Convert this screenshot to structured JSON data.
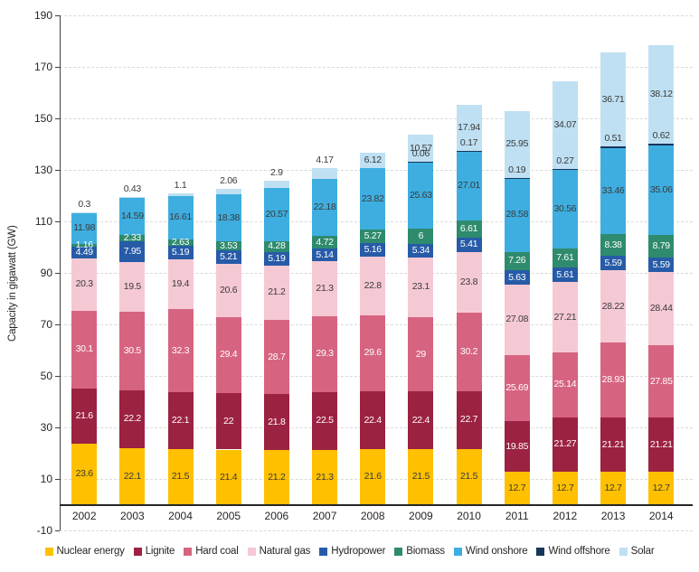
{
  "chart_data": {
    "type": "bar",
    "stacked": true,
    "title": "",
    "xlabel": "",
    "ylabel": "Capacity in gigawatt (GW)",
    "ylim": [
      -10,
      190
    ],
    "yticks": [
      190,
      170,
      150,
      130,
      110,
      90,
      70,
      50,
      30,
      10,
      -10
    ],
    "grid": "horizontal-dashed",
    "legend_position": "bottom",
    "axis_color": "#404040",
    "gridline_color": "#d9d9d9",
    "categories": [
      "2002",
      "2003",
      "2004",
      "2005",
      "2006",
      "2007",
      "2008",
      "2009",
      "2010",
      "2011",
      "2012",
      "2013",
      "2014"
    ],
    "series": [
      {
        "name": "Nuclear energy",
        "color": "#FFC000",
        "label_color": "#3a3a3a",
        "values": [
          23.6,
          22.1,
          21.5,
          21.4,
          21.2,
          21.3,
          21.6,
          21.5,
          21.5,
          12.7,
          12.7,
          12.7,
          12.7
        ]
      },
      {
        "name": "Lignite",
        "color": "#9C2242",
        "label_color": "#ffffff",
        "values": [
          21.6,
          22.2,
          22.1,
          22,
          21.8,
          22.5,
          22.4,
          22.4,
          22.7,
          19.85,
          21.27,
          21.21,
          21.21
        ]
      },
      {
        "name": "Hard coal",
        "color": "#D66480",
        "label_color": "#ffffff",
        "values": [
          30.1,
          30.5,
          32.3,
          29.4,
          28.7,
          29.3,
          29.6,
          29,
          30.2,
          25.69,
          25.14,
          28.93,
          27.85
        ]
      },
      {
        "name": "Natural gas",
        "color": "#F5C9D4",
        "label_color": "#3a3a3a",
        "values": [
          20.3,
          19.5,
          19.4,
          20.6,
          21.2,
          21.3,
          22.8,
          23.1,
          23.8,
          27.08,
          27.21,
          28.22,
          28.44
        ]
      },
      {
        "name": "Hydropower",
        "color": "#275BA8",
        "label_color": "#ffffff",
        "values": [
          4.49,
          7.95,
          5.19,
          5.21,
          5.19,
          5.14,
          5.16,
          5.34,
          5.41,
          5.63,
          5.61,
          5.59,
          5.59
        ]
      },
      {
        "name": "Biomass",
        "color": "#2E8B6D",
        "label_color": "#ffffff",
        "values": [
          1.16,
          2.33,
          2.63,
          3.53,
          4.28,
          4.72,
          5.27,
          6,
          6.61,
          7.26,
          7.61,
          8.38,
          8.79
        ]
      },
      {
        "name": "Wind onshore",
        "color": "#3EAEE0",
        "label_color": "#3a3a3a",
        "values": [
          11.98,
          14.59,
          16.61,
          18.38,
          20.57,
          22.18,
          23.82,
          25.63,
          27.01,
          28.58,
          30.56,
          33.46,
          35.06
        ]
      },
      {
        "name": "Wind offshore",
        "color": "#16365C",
        "label_color": "#3a3a3a",
        "label_outside_if_small": true,
        "values": [
          null,
          null,
          null,
          null,
          null,
          null,
          null,
          0.06,
          0.17,
          0.19,
          0.27,
          0.51,
          0.62
        ]
      },
      {
        "name": "Solar",
        "color": "#BFE0F2",
        "label_color": "#3a3a3a",
        "label_outside_if_small": true,
        "values": [
          0.3,
          0.43,
          1.1,
          2.06,
          2.9,
          4.17,
          6.12,
          10.57,
          17.94,
          25.95,
          34.07,
          36.71,
          38.12
        ]
      }
    ]
  }
}
